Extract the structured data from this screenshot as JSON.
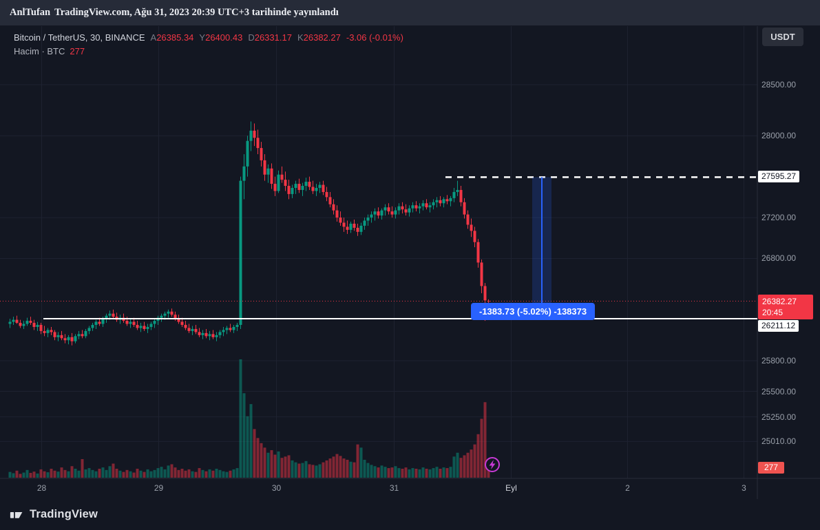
{
  "attribution": {
    "author": "AnlTufan",
    "published": "TradingView.com, Ağu 31, 2023 20:39 UTC+3 tarihinde yayınlandı"
  },
  "header": {
    "currency_button": "USDT"
  },
  "legend": {
    "symbol": "Bitcoin / TetherUS, 30, BINANCE",
    "ohlc": [
      {
        "k": "A",
        "v": "26385.34"
      },
      {
        "k": "Y",
        "v": "26400.43"
      },
      {
        "k": "D",
        "v": "26331.17"
      },
      {
        "k": "K",
        "v": "26382.27"
      }
    ],
    "change": "-3.06 (-0.01%)",
    "volume_label": "Hacim · BTC",
    "volume_value": "277"
  },
  "footer": {
    "brand": "TradingView"
  },
  "chart_data": {
    "type": "candlestick",
    "title": "Bitcoin / TetherUS, 30, BINANCE",
    "exchange": "BINANCE",
    "interval_minutes": 30,
    "ylim": [
      24650,
      29070
    ],
    "grid": true,
    "volume_scale_max": 1850,
    "colors": {
      "up": "#089981",
      "down": "#f23645",
      "grid": "#1e2230",
      "background": "#131722",
      "accent_blue": "#2962ff",
      "last_price_red": "#f23645",
      "event_purple": "#c73ad6",
      "line_white": "#ffffff"
    },
    "price_axis_ticks": [
      {
        "label": "28500.00",
        "price": 28500
      },
      {
        "label": "28000.00",
        "price": 28000
      },
      {
        "label": "27200.00",
        "price": 27200
      },
      {
        "label": "26800.00",
        "price": 26800
      },
      {
        "label": "25800.00",
        "price": 25800
      },
      {
        "label": "25500.00",
        "price": 25500
      },
      {
        "label": "25250.00",
        "price": 25250
      },
      {
        "label": "25010.00",
        "price": 25010
      }
    ],
    "line_labels": [
      {
        "label": "27595.27",
        "price": 27595.27,
        "below_line": false
      },
      {
        "label": "26211.12",
        "price": 26211.12,
        "below_line": true
      }
    ],
    "last_price": {
      "label": "26382.27",
      "countdown": "20:45",
      "price": 26382.27
    },
    "volume_axis_label": "277",
    "time_axis_ticks": [
      {
        "label": "28",
        "i": 9.2,
        "highlight": false
      },
      {
        "label": "29",
        "i": 43.2,
        "highlight": false
      },
      {
        "label": "30",
        "i": 77.4,
        "highlight": false
      },
      {
        "label": "31",
        "i": 111.6,
        "highlight": false
      },
      {
        "label": "Eyl",
        "i": 145.6,
        "highlight": true
      },
      {
        "label": "2",
        "i": 179.4,
        "highlight": false
      },
      {
        "label": "3",
        "i": 213.2,
        "highlight": false
      }
    ],
    "drawings": {
      "solid_hline_price": 26211.12,
      "dashed_hline_price": 27595.27,
      "measure": {
        "from": 27595.27,
        "to": 26211.54,
        "label": "-1383.73 (-5.02%) -138373"
      }
    },
    "candles": [
      [
        26160,
        26210,
        26120,
        26180
      ],
      [
        26180,
        26230,
        26150,
        26200
      ],
      [
        26200,
        26240,
        26160,
        26170
      ],
      [
        26170,
        26200,
        26120,
        26140
      ],
      [
        26140,
        26190,
        26110,
        26160
      ],
      [
        26160,
        26220,
        26140,
        26190
      ],
      [
        26190,
        26230,
        26150,
        26170
      ],
      [
        26170,
        26200,
        26100,
        26130
      ],
      [
        26130,
        26180,
        26090,
        26150
      ],
      [
        26150,
        26170,
        26060,
        26090
      ],
      [
        26090,
        26140,
        26040,
        26070
      ],
      [
        26070,
        26120,
        26030,
        26100
      ],
      [
        26100,
        26130,
        26050,
        26080
      ],
      [
        26080,
        26100,
        26000,
        26030
      ],
      [
        26030,
        26080,
        25990,
        26050
      ],
      [
        26050,
        26090,
        26000,
        26020
      ],
      [
        26020,
        26060,
        25970,
        26000
      ],
      [
        26000,
        26050,
        25960,
        26030
      ],
      [
        26030,
        26070,
        25950,
        25990
      ],
      [
        25990,
        26060,
        25970,
        26040
      ],
      [
        26040,
        26090,
        26010,
        26060
      ],
      [
        26060,
        26100,
        26020,
        26040
      ],
      [
        26040,
        26110,
        26020,
        26090
      ],
      [
        26090,
        26140,
        26060,
        26120
      ],
      [
        26120,
        26170,
        26090,
        26150
      ],
      [
        26150,
        26200,
        26110,
        26180
      ],
      [
        26180,
        26220,
        26140,
        26160
      ],
      [
        26160,
        26230,
        26130,
        26210
      ],
      [
        26210,
        26260,
        26170,
        26240
      ],
      [
        26240,
        26290,
        26200,
        26260
      ],
      [
        26260,
        26300,
        26210,
        26230
      ],
      [
        26230,
        26270,
        26180,
        26200
      ],
      [
        26200,
        26250,
        26160,
        26220
      ],
      [
        26220,
        26260,
        26170,
        26190
      ],
      [
        26190,
        26230,
        26140,
        26160
      ],
      [
        26160,
        26210,
        26120,
        26180
      ],
      [
        26180,
        26220,
        26130,
        26150
      ],
      [
        26150,
        26190,
        26100,
        26120
      ],
      [
        26120,
        26170,
        26080,
        26140
      ],
      [
        26140,
        26180,
        26090,
        26110
      ],
      [
        26110,
        26160,
        26070,
        26130
      ],
      [
        26130,
        26180,
        26100,
        26160
      ],
      [
        26160,
        26210,
        26120,
        26190
      ],
      [
        26190,
        26240,
        26150,
        26220
      ],
      [
        26220,
        26260,
        26180,
        26240
      ],
      [
        26240,
        26280,
        26200,
        26260
      ],
      [
        26260,
        26300,
        26220,
        26280
      ],
      [
        26280,
        26310,
        26230,
        26250
      ],
      [
        26250,
        26280,
        26190,
        26210
      ],
      [
        26210,
        26250,
        26160,
        26180
      ],
      [
        26180,
        26220,
        26130,
        26150
      ],
      [
        26150,
        26190,
        26100,
        26120
      ],
      [
        26120,
        26160,
        26070,
        26090
      ],
      [
        26090,
        26140,
        26050,
        26110
      ],
      [
        26110,
        26150,
        26060,
        26080
      ],
      [
        26080,
        26120,
        26030,
        26050
      ],
      [
        26050,
        26100,
        26010,
        26070
      ],
      [
        26070,
        26110,
        26020,
        26040
      ],
      [
        26040,
        26090,
        26000,
        26060
      ],
      [
        26060,
        26100,
        26010,
        26030
      ],
      [
        26030,
        26080,
        25990,
        26050
      ],
      [
        26050,
        26100,
        26020,
        26080
      ],
      [
        26080,
        26130,
        26040,
        26100
      ],
      [
        26100,
        26140,
        26060,
        26120
      ],
      [
        26120,
        26160,
        26080,
        26100
      ],
      [
        26100,
        26150,
        26070,
        26130
      ],
      [
        26130,
        26170,
        26090,
        26150
      ],
      [
        26150,
        27600,
        26110,
        27560
      ],
      [
        27560,
        27820,
        27380,
        27700
      ],
      [
        27700,
        28000,
        27600,
        27950
      ],
      [
        27950,
        28140,
        27850,
        28050
      ],
      [
        28050,
        28120,
        27900,
        27980
      ],
      [
        27980,
        28060,
        27820,
        27880
      ],
      [
        27880,
        27940,
        27700,
        27760
      ],
      [
        27760,
        27820,
        27560,
        27620
      ],
      [
        27620,
        27720,
        27540,
        27680
      ],
      [
        27680,
        27730,
        27480,
        27530
      ],
      [
        27530,
        27600,
        27410,
        27460
      ],
      [
        27460,
        27660,
        27440,
        27620
      ],
      [
        27620,
        27700,
        27540,
        27570
      ],
      [
        27570,
        27650,
        27460,
        27510
      ],
      [
        27510,
        27570,
        27380,
        27430
      ],
      [
        27430,
        27520,
        27390,
        27490
      ],
      [
        27490,
        27560,
        27430,
        27530
      ],
      [
        27530,
        27580,
        27440,
        27470
      ],
      [
        27470,
        27540,
        27410,
        27510
      ],
      [
        27510,
        27590,
        27460,
        27550
      ],
      [
        27550,
        27600,
        27470,
        27500
      ],
      [
        27500,
        27560,
        27430,
        27460
      ],
      [
        27460,
        27530,
        27410,
        27490
      ],
      [
        27490,
        27550,
        27440,
        27520
      ],
      [
        27520,
        27560,
        27420,
        27450
      ],
      [
        27450,
        27500,
        27360,
        27400
      ],
      [
        27400,
        27450,
        27300,
        27330
      ],
      [
        27330,
        27380,
        27230,
        27270
      ],
      [
        27270,
        27320,
        27160,
        27200
      ],
      [
        27200,
        27260,
        27120,
        27150
      ],
      [
        27150,
        27200,
        27060,
        27110
      ],
      [
        27110,
        27170,
        27040,
        27080
      ],
      [
        27080,
        27160,
        27050,
        27140
      ],
      [
        27140,
        27180,
        27070,
        27100
      ],
      [
        27100,
        27140,
        27020,
        27060
      ],
      [
        27060,
        27150,
        27030,
        27120
      ],
      [
        27120,
        27200,
        27080,
        27170
      ],
      [
        27170,
        27230,
        27120,
        27200
      ],
      [
        27200,
        27260,
        27150,
        27230
      ],
      [
        27230,
        27290,
        27170,
        27260
      ],
      [
        27260,
        27300,
        27190,
        27220
      ],
      [
        27220,
        27290,
        27180,
        27270
      ],
      [
        27270,
        27330,
        27220,
        27300
      ],
      [
        27300,
        27340,
        27230,
        27260
      ],
      [
        27260,
        27310,
        27200,
        27230
      ],
      [
        27230,
        27300,
        27190,
        27270
      ],
      [
        27270,
        27340,
        27230,
        27310
      ],
      [
        27310,
        27350,
        27240,
        27280
      ],
      [
        27280,
        27330,
        27220,
        27250
      ],
      [
        27250,
        27320,
        27210,
        27290
      ],
      [
        27290,
        27350,
        27250,
        27320
      ],
      [
        27320,
        27360,
        27260,
        27290
      ],
      [
        27290,
        27340,
        27240,
        27310
      ],
      [
        27310,
        27370,
        27270,
        27340
      ],
      [
        27340,
        27380,
        27280,
        27300
      ],
      [
        27300,
        27350,
        27250,
        27320
      ],
      [
        27320,
        27380,
        27280,
        27350
      ],
      [
        27350,
        27400,
        27300,
        27370
      ],
      [
        27370,
        27410,
        27310,
        27340
      ],
      [
        27340,
        27400,
        27300,
        27380
      ],
      [
        27380,
        27420,
        27330,
        27360
      ],
      [
        27360,
        27410,
        27310,
        27390
      ],
      [
        27390,
        27490,
        27350,
        27450
      ],
      [
        27450,
        27560,
        27410,
        27470
      ],
      [
        27470,
        27510,
        27310,
        27350
      ],
      [
        27350,
        27390,
        27190,
        27230
      ],
      [
        27230,
        27270,
        27090,
        27130
      ],
      [
        27130,
        27190,
        27010,
        27070
      ],
      [
        27070,
        27110,
        26910,
        26960
      ],
      [
        26960,
        26990,
        26710,
        26760
      ],
      [
        26760,
        26790,
        26460,
        26530
      ],
      [
        26530,
        26560,
        26190,
        26390
      ],
      [
        26385.34,
        26400.43,
        26331.17,
        26382.27
      ]
    ],
    "volumes": [
      90,
      70,
      110,
      60,
      80,
      120,
      75,
      95,
      65,
      130,
      100,
      85,
      140,
      110,
      95,
      160,
      120,
      100,
      180,
      140,
      110,
      290,
      130,
      150,
      120,
      100,
      140,
      160,
      120,
      180,
      220,
      140,
      110,
      90,
      120,
      100,
      80,
      140,
      110,
      90,
      130,
      100,
      120,
      150,
      170,
      130,
      190,
      210,
      160,
      120,
      140,
      110,
      130,
      100,
      90,
      150,
      120,
      100,
      130,
      110,
      140,
      120,
      100,
      90,
      110,
      130,
      150,
      1850,
      1320,
      960,
      1150,
      760,
      620,
      540,
      470,
      390,
      430,
      360,
      410,
      310,
      330,
      350,
      270,
      240,
      220,
      230,
      260,
      210,
      200,
      190,
      210,
      240,
      270,
      300,
      330,
      370,
      340,
      300,
      280,
      250,
      240,
      520,
      470,
      280,
      230,
      200,
      180,
      160,
      190,
      170,
      150,
      160,
      180,
      150,
      140,
      160,
      130,
      150,
      140,
      130,
      160,
      140,
      130,
      150,
      170,
      140,
      160,
      150,
      170,
      330,
      390,
      310,
      350,
      390,
      440,
      520,
      680,
      920,
      1180,
      277
    ]
  }
}
